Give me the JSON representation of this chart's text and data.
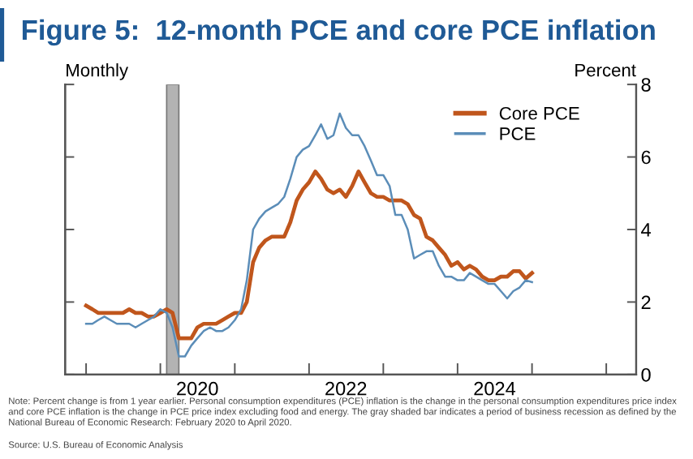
{
  "chart_data": {
    "type": "line",
    "title": "Figure 5:  12-month PCE and core PCE inflation",
    "ylabel": "Monthly",
    "y2label": "Percent",
    "x": [
      "2019-01",
      "2019-02",
      "2019-03",
      "2019-04",
      "2019-05",
      "2019-06",
      "2019-07",
      "2019-08",
      "2019-09",
      "2019-10",
      "2019-11",
      "2019-12",
      "2020-01",
      "2020-02",
      "2020-03",
      "2020-04",
      "2020-05",
      "2020-06",
      "2020-07",
      "2020-08",
      "2020-09",
      "2020-10",
      "2020-11",
      "2020-12",
      "2021-01",
      "2021-02",
      "2021-03",
      "2021-04",
      "2021-05",
      "2021-06",
      "2021-07",
      "2021-08",
      "2021-09",
      "2021-10",
      "2021-11",
      "2021-12",
      "2022-01",
      "2022-02",
      "2022-03",
      "2022-04",
      "2022-05",
      "2022-06",
      "2022-07",
      "2022-08",
      "2022-09",
      "2022-10",
      "2022-11",
      "2022-12",
      "2023-01",
      "2023-02",
      "2023-03",
      "2023-04",
      "2023-05",
      "2023-06",
      "2023-07",
      "2023-08",
      "2023-09",
      "2023-10",
      "2023-11",
      "2023-12",
      "2024-01",
      "2024-02",
      "2024-03",
      "2024-04",
      "2024-05",
      "2024-06",
      "2024-07",
      "2024-08",
      "2024-09",
      "2024-10",
      "2024-11",
      "2024-12",
      "2025-01"
    ],
    "series": [
      {
        "name": "Core PCE",
        "color": "#c0561c",
        "values": [
          1.9,
          1.8,
          1.7,
          1.7,
          1.7,
          1.7,
          1.7,
          1.8,
          1.7,
          1.7,
          1.6,
          1.6,
          1.7,
          1.8,
          1.7,
          1.0,
          1.0,
          1.0,
          1.3,
          1.4,
          1.4,
          1.4,
          1.5,
          1.6,
          1.7,
          1.7,
          2.0,
          3.1,
          3.5,
          3.7,
          3.8,
          3.8,
          3.8,
          4.2,
          4.8,
          5.1,
          5.3,
          5.6,
          5.4,
          5.1,
          5.0,
          5.1,
          4.9,
          5.2,
          5.6,
          5.3,
          5.0,
          4.9,
          4.9,
          4.8,
          4.8,
          4.8,
          4.7,
          4.4,
          4.3,
          3.8,
          3.7,
          3.5,
          3.3,
          3.0,
          3.1,
          2.9,
          3.0,
          2.9,
          2.7,
          2.6,
          2.6,
          2.7,
          2.7,
          2.85,
          2.85,
          2.65,
          2.8
        ]
      },
      {
        "name": "PCE",
        "color": "#5b8db8",
        "values": [
          1.4,
          1.4,
          1.5,
          1.6,
          1.5,
          1.4,
          1.4,
          1.4,
          1.3,
          1.4,
          1.5,
          1.6,
          1.8,
          1.7,
          1.3,
          0.5,
          0.5,
          0.8,
          1.0,
          1.2,
          1.3,
          1.2,
          1.2,
          1.3,
          1.5,
          1.8,
          2.6,
          4.0,
          4.3,
          4.5,
          4.6,
          4.7,
          4.9,
          5.4,
          6.0,
          6.2,
          6.3,
          6.6,
          6.9,
          6.5,
          6.6,
          7.2,
          6.8,
          6.6,
          6.6,
          6.3,
          5.9,
          5.5,
          5.5,
          5.2,
          4.4,
          4.4,
          4.0,
          3.2,
          3.3,
          3.4,
          3.4,
          3.0,
          2.7,
          2.7,
          2.6,
          2.6,
          2.8,
          2.7,
          2.6,
          2.5,
          2.5,
          2.3,
          2.1,
          2.3,
          2.4,
          2.6,
          2.55
        ]
      }
    ],
    "xlim": [
      "2018-09-20",
      "2026-05-28"
    ],
    "xticks": [
      {
        "value": "2019-01-01",
        "label": null
      },
      {
        "value": "2020-01-01",
        "label": null
      },
      {
        "value": "2021-01-01",
        "label": null
      },
      {
        "value": "2022-01-01",
        "label": null
      },
      {
        "value": "2023-01-01",
        "label": null
      },
      {
        "value": "2024-01-01",
        "label": null
      },
      {
        "value": "2025-01-01",
        "label": null
      },
      {
        "value": "2026-01-01",
        "label": null
      },
      {
        "value": "2020-07-01",
        "label": "2020"
      },
      {
        "value": "2022-07-01",
        "label": "2022"
      },
      {
        "value": "2024-07-01",
        "label": "2024"
      }
    ],
    "ylim": [
      0,
      8
    ],
    "yticks": [
      0,
      2,
      4,
      6,
      8
    ],
    "bands": [
      {
        "axis": "x",
        "from": "2020-02",
        "to": "2020-04",
        "color": "#b3b3b3"
      }
    ],
    "legend": "top right",
    "grid": false,
    "marker": "none",
    "line_style": "solid",
    "annotations": [
      "Note: Percent change is from 1 year earlier. Personal consumption expenditures (PCE) inflation is the change in the personal consumption expenditures price index and core PCE inflation is the change in PCE price index excluding food and energy. The gray shaded bar indicates a period of business recession as defined by the National Bureau of Economic Research: February 2020 to April 2020.",
      "Source: U.S. Bureau of Economic Analysis"
    ]
  }
}
